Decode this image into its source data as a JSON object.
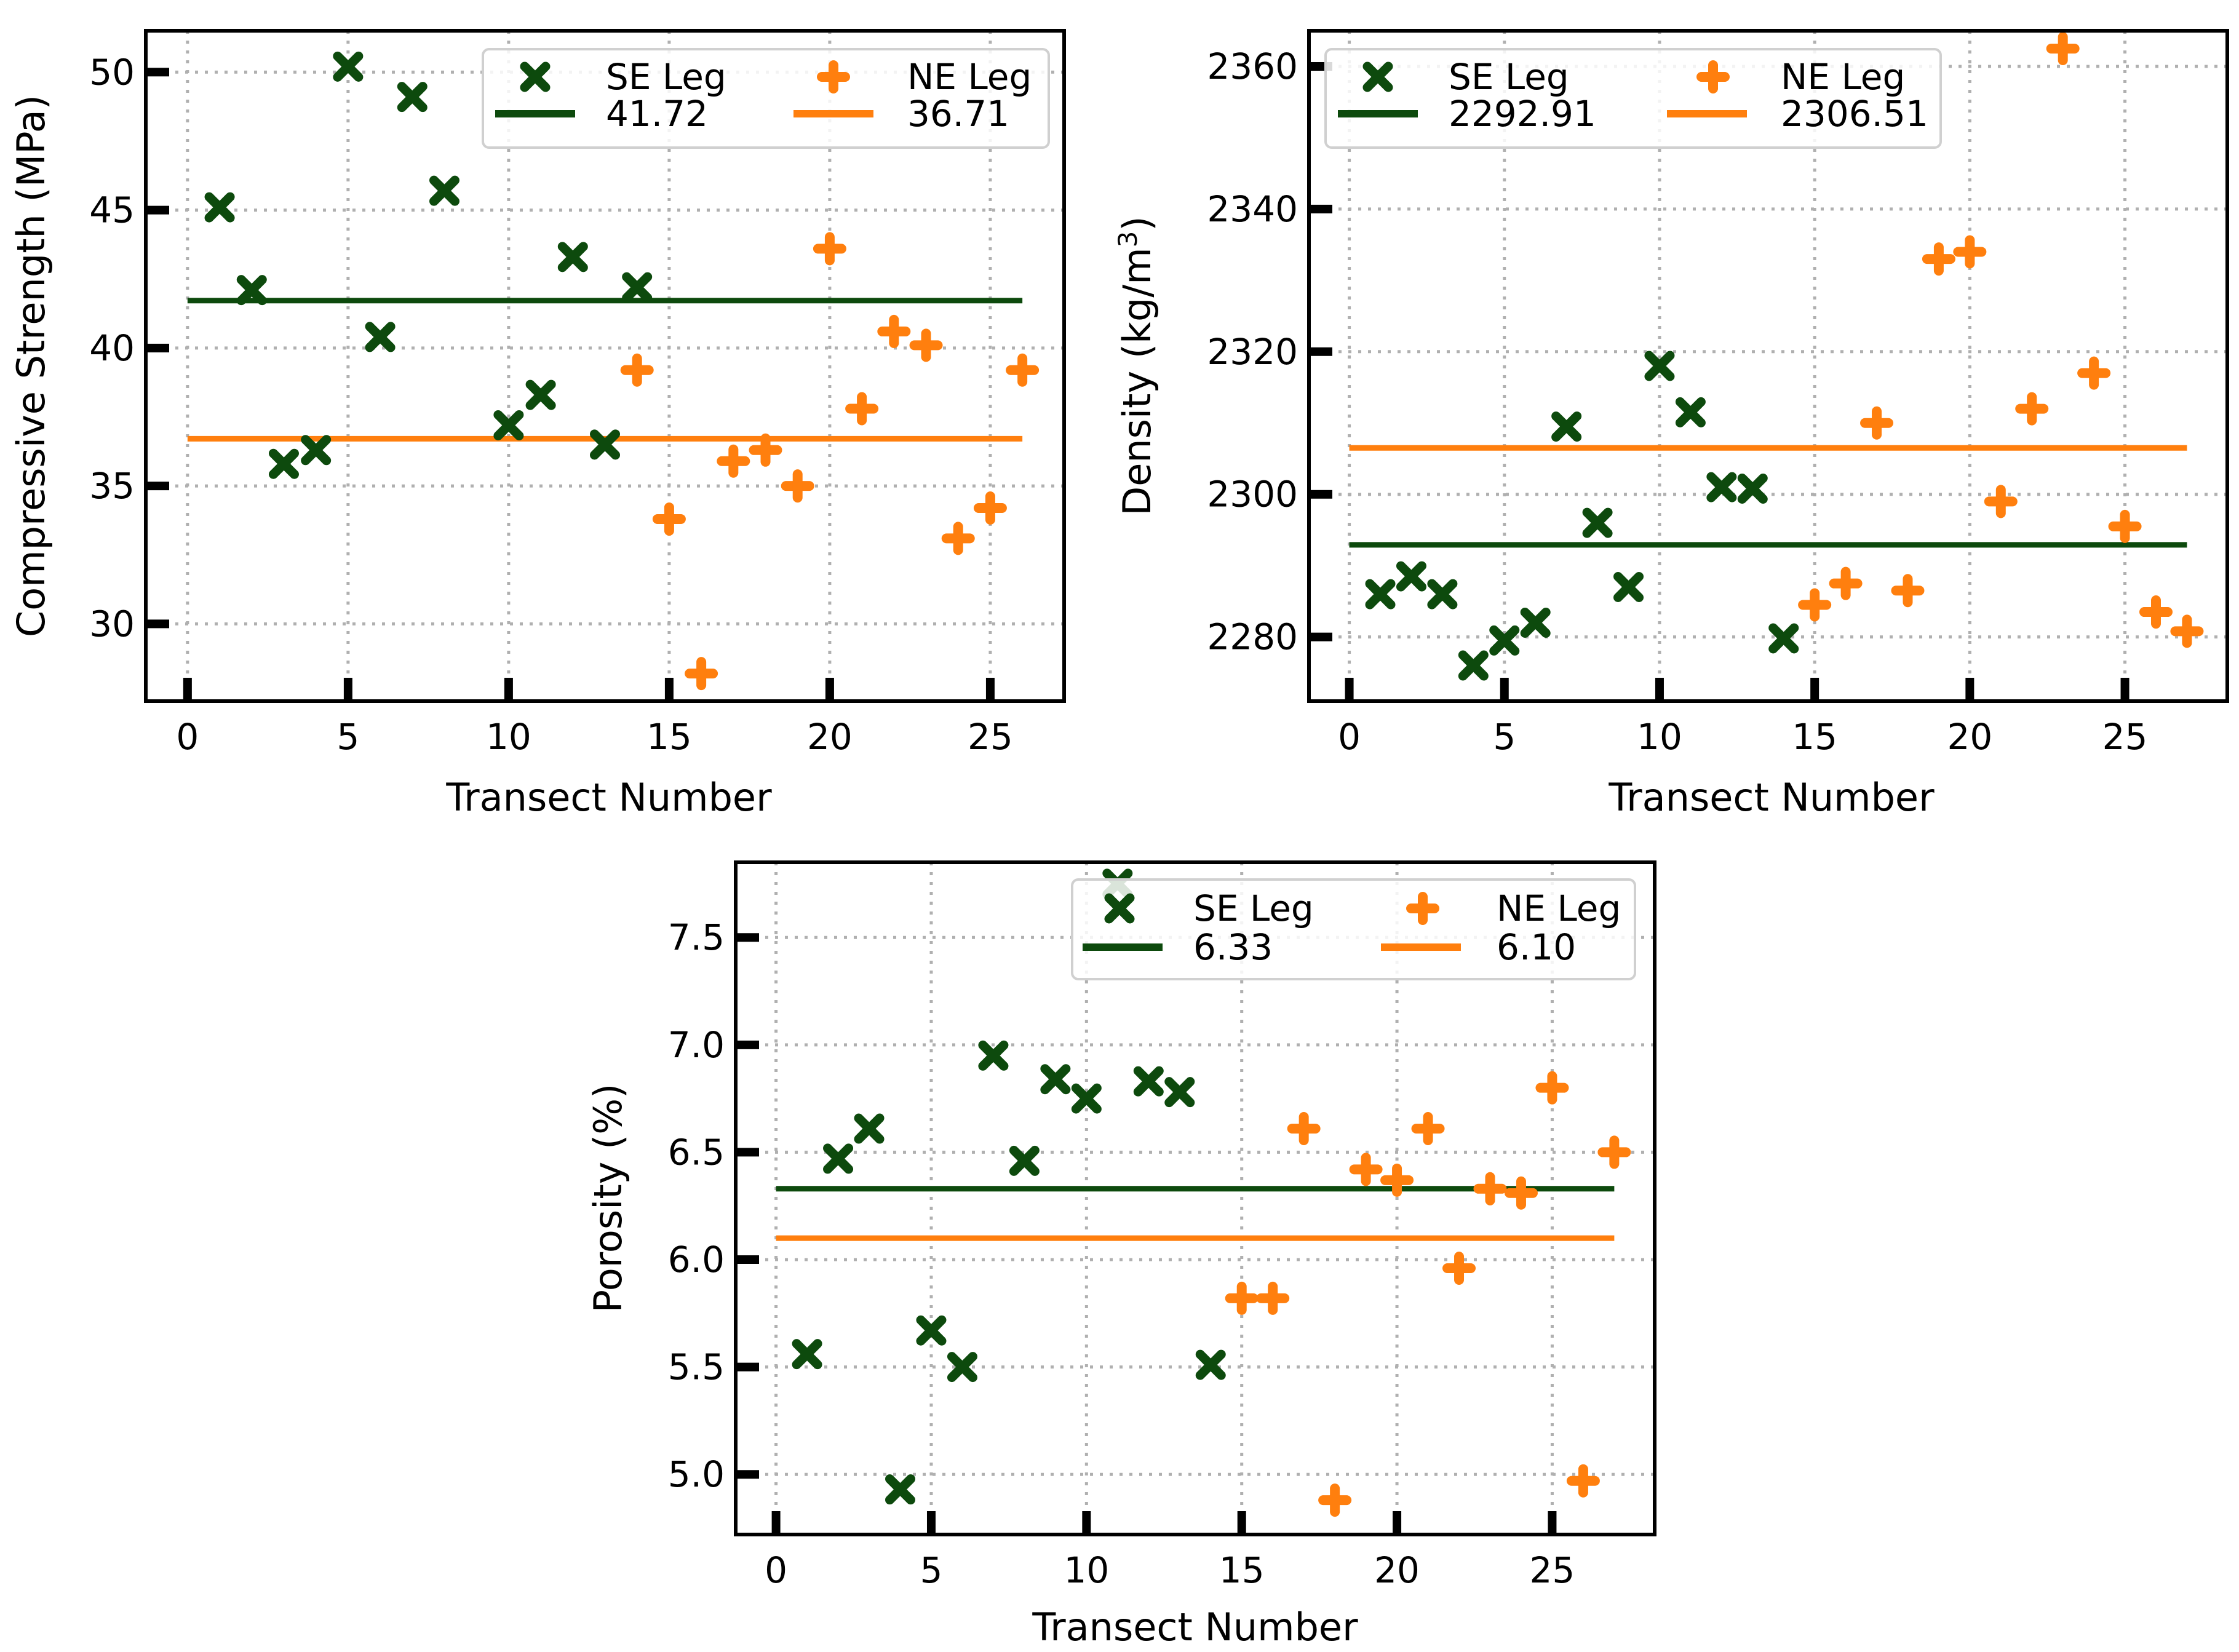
{
  "colors": {
    "se": "#0d4a0d",
    "ne": "#ff7f0e"
  },
  "chart_data": [
    {
      "type": "scatter",
      "xlabel": "Transect Number",
      "ylabel": "Compressive Strength (MPa)",
      "xlim": [
        -1.3,
        27.3
      ],
      "ylim": [
        27.2,
        51.5
      ],
      "xticks": [
        0,
        5,
        10,
        15,
        20,
        25
      ],
      "xtick_labels": [
        "0",
        "5",
        "10",
        "15",
        "20",
        "25"
      ],
      "yticks": [
        30,
        35,
        40,
        45,
        50
      ],
      "ytick_labels": [
        "30",
        "35",
        "40",
        "45",
        "50"
      ],
      "grid": true,
      "legend_position": "top-right",
      "series": [
        {
          "name": "SE Leg",
          "marker": "x",
          "x": [
            1,
            2,
            3,
            4,
            5,
            6,
            7,
            8,
            10,
            11,
            12,
            13,
            14
          ],
          "y": [
            45.1,
            42.1,
            35.8,
            36.3,
            50.2,
            40.4,
            49.1,
            45.7,
            37.2,
            38.3,
            43.3,
            36.5,
            42.2
          ]
        },
        {
          "name": "NE Leg",
          "marker": "plus",
          "x": [
            14,
            15,
            16,
            17,
            18,
            19,
            20,
            21,
            22,
            23,
            24,
            25,
            26
          ],
          "y": [
            39.2,
            33.8,
            28.2,
            35.9,
            36.3,
            35.0,
            43.6,
            37.8,
            40.6,
            40.1,
            33.1,
            34.2,
            39.2
          ]
        }
      ],
      "mean_lines": [
        {
          "series": "SE Leg",
          "value": 41.72,
          "label": "41.72",
          "x_range": [
            0,
            26
          ]
        },
        {
          "series": "NE Leg",
          "value": 36.71,
          "label": "36.71",
          "x_range": [
            0,
            26
          ]
        }
      ]
    },
    {
      "type": "scatter",
      "xlabel": "Transect Number",
      "ylabel": "Density (kg/m",
      "ylabel_superscript": "3",
      "ylabel_suffix": ")",
      "xlim": [
        -1.3,
        28.3
      ],
      "ylim": [
        2271,
        2365
      ],
      "xticks": [
        0,
        5,
        10,
        15,
        20,
        25
      ],
      "xtick_labels": [
        "0",
        "5",
        "10",
        "15",
        "20",
        "25"
      ],
      "yticks": [
        2280,
        2300,
        2320,
        2340,
        2360
      ],
      "ytick_labels": [
        "2280",
        "2300",
        "2320",
        "2340",
        "2360"
      ],
      "grid": true,
      "legend_position": "top-left",
      "series": [
        {
          "name": "SE Leg",
          "marker": "x",
          "x": [
            1,
            2,
            3,
            4,
            5,
            6,
            7,
            8,
            9,
            10,
            11,
            12,
            13,
            14
          ],
          "y": [
            2286,
            2288.5,
            2286,
            2276,
            2279.5,
            2282,
            2309.5,
            2296,
            2287,
            2318,
            2311.5,
            2301,
            2300.8,
            2279.8
          ]
        },
        {
          "name": "NE Leg",
          "marker": "plus",
          "x": [
            15,
            16,
            17,
            18,
            19,
            20,
            21,
            22,
            23,
            24,
            25,
            26,
            27
          ],
          "y": [
            2284.5,
            2287.5,
            2310,
            2286.5,
            2333,
            2334,
            2299,
            2312,
            2362.5,
            2317,
            2295.5,
            2283.5,
            2280.8
          ]
        }
      ],
      "mean_lines": [
        {
          "series": "SE Leg",
          "value": 2292.91,
          "label": "2292.91",
          "x_range": [
            0,
            27
          ]
        },
        {
          "series": "NE Leg",
          "value": 2306.51,
          "label": "2306.51",
          "x_range": [
            0,
            27
          ]
        }
      ]
    },
    {
      "type": "scatter",
      "xlabel": "Transect Number",
      "ylabel": "Porosity (%)",
      "xlim": [
        -1.3,
        28.3
      ],
      "ylim": [
        4.72,
        7.85
      ],
      "xticks": [
        0,
        5,
        10,
        15,
        20,
        25
      ],
      "xtick_labels": [
        "0",
        "5",
        "10",
        "15",
        "20",
        "25"
      ],
      "yticks": [
        5.0,
        5.5,
        6.0,
        6.5,
        7.0,
        7.5
      ],
      "ytick_labels": [
        "5.0",
        "5.5",
        "6.0",
        "6.5",
        "7.0",
        "7.5"
      ],
      "grid": true,
      "legend_position": "top-right",
      "series": [
        {
          "name": "SE Leg",
          "marker": "x",
          "x": [
            1,
            2,
            3,
            4,
            5,
            6,
            7,
            8,
            9,
            10,
            11,
            12,
            13,
            14
          ],
          "y": [
            5.56,
            6.47,
            6.61,
            4.93,
            5.67,
            5.5,
            6.95,
            6.46,
            6.84,
            6.75,
            7.75,
            6.83,
            6.78,
            5.51
          ]
        },
        {
          "name": "NE Leg",
          "marker": "plus",
          "x": [
            15,
            16,
            17,
            18,
            19,
            20,
            21,
            22,
            23,
            24,
            25,
            26,
            27
          ],
          "y": [
            5.82,
            5.82,
            6.61,
            4.88,
            6.42,
            6.37,
            6.61,
            5.96,
            6.33,
            6.31,
            6.8,
            4.97,
            6.5
          ]
        }
      ],
      "mean_lines": [
        {
          "series": "SE Leg",
          "value": 6.33,
          "label": "6.33",
          "x_range": [
            0,
            27
          ]
        },
        {
          "series": "NE Leg",
          "value": 6.1,
          "label": "6.10",
          "x_range": [
            0,
            27
          ]
        }
      ]
    }
  ]
}
